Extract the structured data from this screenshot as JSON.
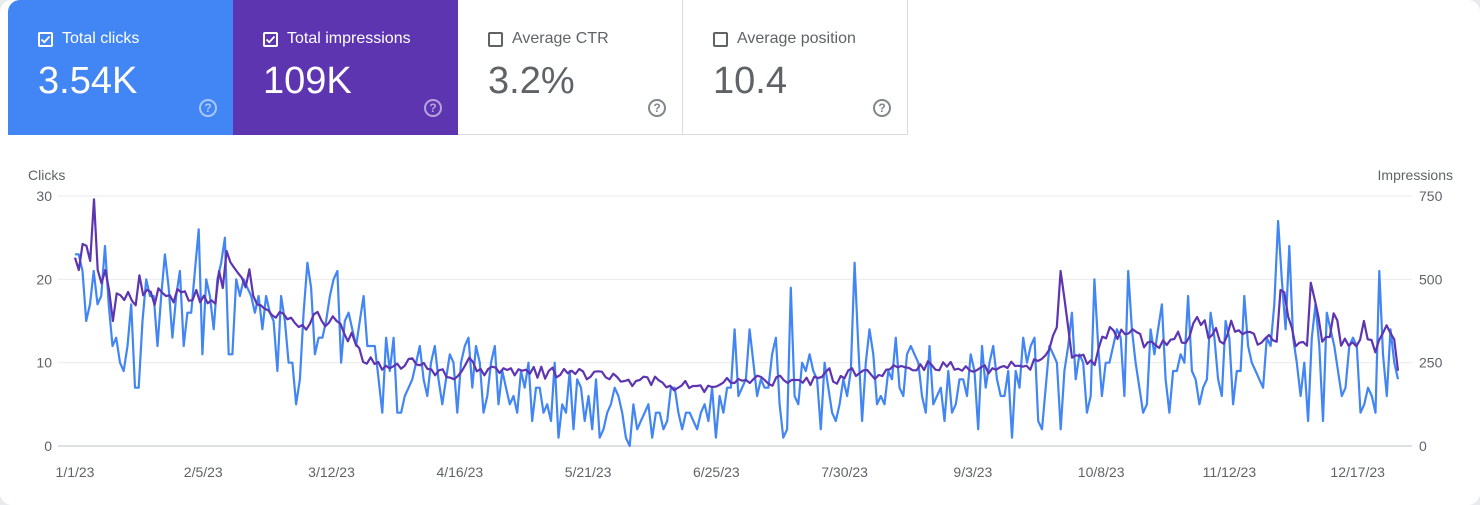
{
  "metrics": {
    "clicks": {
      "label": "Total clicks",
      "value": "3.54K",
      "checked": true,
      "color": "#4285f4"
    },
    "impressions": {
      "label": "Total impressions",
      "value": "109K",
      "checked": true,
      "color": "#5e35b1"
    },
    "ctr": {
      "label": "Average CTR",
      "value": "3.2%",
      "checked": false
    },
    "position": {
      "label": "Average position",
      "value": "10.4",
      "checked": false
    }
  },
  "help_glyph": "?",
  "chart_data": {
    "type": "line",
    "left_axis_title": "Clicks",
    "right_axis_title": "Impressions",
    "left_ylim": [
      0,
      30
    ],
    "left_ticks": [
      0,
      10,
      20,
      30
    ],
    "right_ylim": [
      0,
      750
    ],
    "right_ticks": [
      0,
      250,
      500,
      750
    ],
    "x_ticks": [
      "1/1/23",
      "2/5/23",
      "3/12/23",
      "4/16/23",
      "5/21/23",
      "6/25/23",
      "7/30/23",
      "9/3/23",
      "10/8/23",
      "11/12/23",
      "12/17/23"
    ],
    "x_range": [
      "2023-01-01",
      "2023-12-28"
    ],
    "grid": true,
    "series": [
      {
        "name": "Clicks",
        "axis": "left",
        "color": "#4285f4",
        "values": [
          23,
          23,
          21,
          15,
          17,
          21,
          17,
          18,
          24,
          17,
          12,
          13,
          10,
          9,
          12,
          17,
          7,
          7,
          15,
          20,
          18,
          18,
          12,
          18,
          23,
          19,
          13,
          18,
          21,
          12,
          16,
          16,
          21,
          26,
          11,
          20,
          18,
          14,
          20,
          22,
          25,
          11,
          11,
          20,
          18,
          20,
          19,
          18,
          16,
          18,
          14,
          18,
          16,
          15,
          9,
          18,
          15,
          10,
          10,
          5,
          8,
          16,
          22,
          19,
          11,
          13,
          13,
          15,
          18,
          20,
          21,
          10,
          15,
          16,
          14,
          12,
          15,
          18,
          12,
          12,
          12,
          8,
          4,
          13,
          9,
          13,
          4,
          4,
          6,
          7,
          8,
          10,
          12,
          8,
          6,
          10,
          12,
          8,
          5,
          8,
          11,
          10,
          4,
          10,
          12,
          13,
          7,
          12,
          10,
          4,
          6,
          10,
          12,
          5,
          9,
          7,
          5,
          6,
          4,
          9,
          7,
          10,
          3,
          7,
          7,
          4,
          5,
          3,
          10,
          1,
          5,
          4,
          9,
          2,
          8,
          7,
          3,
          6,
          2,
          8,
          1,
          2,
          4,
          5,
          7,
          6,
          4,
          1,
          0,
          5,
          2,
          3,
          4,
          5,
          1,
          4,
          4,
          2,
          3,
          7,
          7,
          4,
          2,
          4,
          4,
          3,
          2,
          4,
          5,
          3,
          7,
          1,
          6,
          4,
          7,
          7,
          14,
          6,
          7,
          8,
          14,
          10,
          6,
          8,
          7,
          7,
          11,
          13,
          5,
          1,
          2,
          19,
          6,
          5,
          10,
          9,
          11,
          9,
          8,
          2,
          10,
          7,
          4,
          3,
          5,
          8,
          6,
          9,
          22,
          12,
          3,
          10,
          14,
          11,
          5,
          6,
          5,
          9,
          8,
          13,
          7,
          6,
          11,
          12,
          11,
          10,
          6,
          4,
          12,
          5,
          6,
          7,
          3,
          9,
          4,
          5,
          8,
          8,
          6,
          11,
          9,
          2,
          12,
          7,
          10,
          12,
          8,
          6,
          6,
          9,
          1,
          9,
          7,
          13,
          10,
          12,
          13,
          3,
          2,
          7,
          12,
          11,
          10,
          2,
          9,
          12,
          16,
          8,
          11,
          10,
          4,
          6,
          20,
          12,
          6,
          10,
          10,
          12,
          14,
          13,
          6,
          21,
          14,
          10,
          7,
          4,
          5,
          14,
          11,
          14,
          17,
          8,
          4,
          9,
          9,
          11,
          10,
          18,
          9,
          8,
          5,
          7,
          8,
          16,
          13,
          8,
          6,
          15,
          13,
          5,
          9,
          9,
          18,
          12,
          10,
          9,
          8,
          7,
          13,
          12,
          17,
          27,
          20,
          14,
          24,
          13,
          10,
          6,
          10,
          3,
          13,
          17,
          12,
          3,
          16,
          14,
          12,
          9,
          6,
          7,
          12,
          13,
          12,
          4,
          5,
          7,
          6,
          4,
          21,
          11,
          6,
          14,
          10,
          8
        ]
      },
      {
        "name": "Impressions",
        "axis": "right",
        "color": "#5e35b1",
        "values": [
          565,
          528,
          606,
          601,
          555,
          740,
          528,
          488,
          528,
          467,
          375,
          458,
          452,
          438,
          462,
          436,
          422,
          512,
          452,
          469,
          462,
          423,
          473,
          460,
          450,
          452,
          431,
          471,
          461,
          464,
          436,
          437,
          468,
          431,
          451,
          428,
          437,
          427,
          525,
          474,
          585,
          551,
          535,
          519,
          505,
          476,
          530,
          451,
          425,
          422,
          412,
          407,
          392,
          385,
          402,
          397,
          380,
          385,
          369,
          357,
          363,
          349,
          367,
          395,
          402,
          377,
          359,
          370,
          389,
          375,
          367,
          338,
          314,
          340,
          307,
          293,
          252,
          247,
          266,
          246,
          252,
          229,
          241,
          233,
          239,
          247,
          232,
          241,
          261,
          263,
          245,
          242,
          249,
          231,
          230,
          212,
          227,
          230,
          207,
          205,
          200,
          210,
          224,
          244,
          265,
          252,
          224,
          231,
          212,
          231,
          238,
          235,
          219,
          233,
          228,
          233,
          212,
          230,
          226,
          229,
          217,
          237,
          205,
          238,
          202,
          226,
          235,
          206,
          213,
          231,
          218,
          226,
          216,
          231,
          224,
          200,
          208,
          223,
          224,
          223,
          206,
          200,
          217,
          207,
          193,
          195,
          199,
          180,
          195,
          198,
          208,
          206,
          183,
          208,
          197,
          190,
          176,
          181,
          167,
          174,
          181,
          195,
          174,
          180,
          180,
          182,
          162,
          181,
          177,
          178,
          183,
          190,
          204,
          190,
          189,
          201,
          196,
          198,
          189,
          201,
          211,
          207,
          197,
          186,
          181,
          206,
          211,
          197,
          189,
          198,
          198,
          198,
          190,
          205,
          183,
          208,
          204,
          207,
          222,
          233,
          193,
          187,
          210,
          203,
          227,
          233,
          210,
          219,
          227,
          228,
          214,
          201,
          213,
          210,
          229,
          230,
          242,
          236,
          240,
          236,
          234,
          227,
          227,
          245,
          228,
          254,
          243,
          229,
          227,
          251,
          238,
          252,
          229,
          232,
          226,
          239,
          227,
          223,
          228,
          236,
          242,
          218,
          233,
          229,
          236,
          240,
          234,
          253,
          240,
          241,
          238,
          241,
          229,
          260,
          255,
          261,
          272,
          289,
          331,
          356,
          525,
          443,
          355,
          265,
          272,
          270,
          274,
          246,
          257,
          243,
          292,
          328,
          323,
          357,
          346,
          321,
          349,
          335,
          338,
          350,
          342,
          336,
          296,
          311,
          313,
          303,
          294,
          317,
          303,
          319,
          321,
          343,
          310,
          309,
          328,
          368,
          387,
          363,
          377,
          323,
          333,
          354,
          314,
          307,
          333,
          376,
          343,
          347,
          335,
          342,
          342,
          337,
          304,
          310,
          323,
          333,
          317,
          313,
          468,
          461,
          389,
          354,
          299,
          310,
          312,
          301,
          490,
          441,
          388,
          313,
          327,
          327,
          398,
          377,
          301,
          322,
          301,
          311,
          299,
          319,
          375,
          320,
          318,
          281,
          317,
          338,
          362,
          339,
          320,
          226
        ]
      }
    ]
  }
}
